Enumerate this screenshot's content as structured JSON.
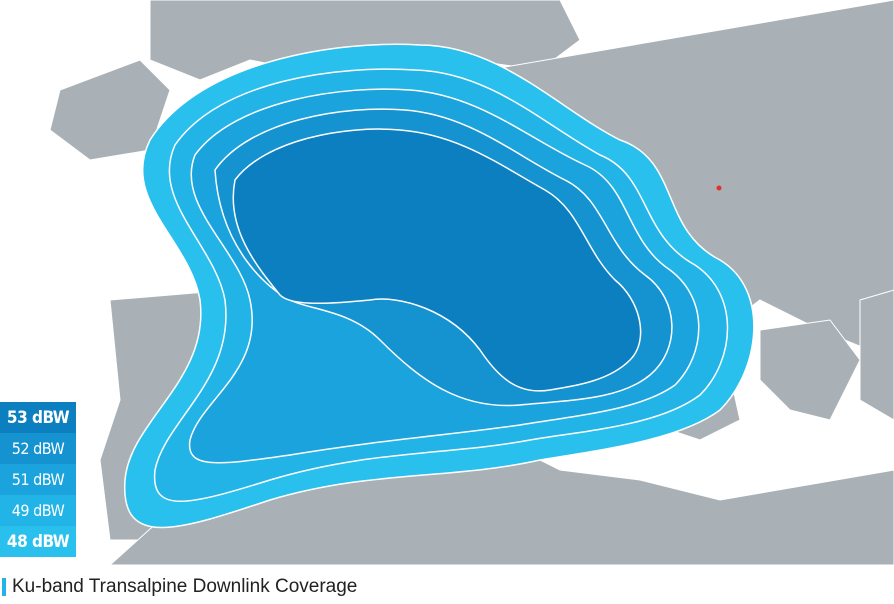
{
  "legend": [
    {
      "label": "53 dBW",
      "color": "#0b7fbf",
      "bold": true
    },
    {
      "label": "52 dBW",
      "color": "#1592d0",
      "bold": false
    },
    {
      "label": "51 dBW",
      "color": "#1aa3dc",
      "bold": false
    },
    {
      "label": "49 dBW",
      "color": "#22b4e6",
      "bold": false
    },
    {
      "label": "48 dBW",
      "color": "#2ac0ee",
      "bold": true
    }
  ],
  "caption": "Ku-band Transalpine Downlink Coverage",
  "colors": {
    "land": "#a9b1b6",
    "sea": "#ffffff",
    "border": "#ffffff",
    "marker": "#e0322c"
  }
}
